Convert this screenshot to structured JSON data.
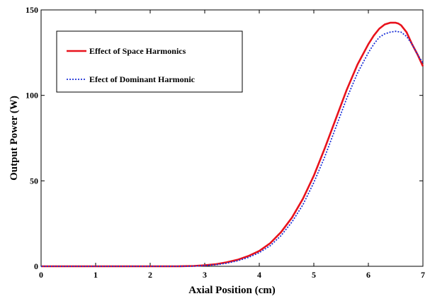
{
  "chart_data": {
    "type": "line",
    "title": "",
    "xlabel": "Axial Position (cm)",
    "ylabel": "Output Power (W)",
    "xlim": [
      0,
      7
    ],
    "ylim": [
      0,
      150
    ],
    "xticks": [
      0,
      1,
      2,
      3,
      4,
      5,
      6,
      7
    ],
    "yticks": [
      0,
      50,
      100,
      150
    ],
    "grid": false,
    "legend_position": "top-left",
    "series": [
      {
        "name": "Effect of Space Harmonics",
        "color": "#e8121c",
        "style": "solid",
        "x": [
          0,
          1,
          2,
          2.5,
          2.8,
          3.0,
          3.2,
          3.4,
          3.6,
          3.8,
          4.0,
          4.2,
          4.4,
          4.6,
          4.8,
          5.0,
          5.2,
          5.4,
          5.6,
          5.8,
          6.0,
          6.1,
          6.2,
          6.3,
          6.4,
          6.5,
          6.55,
          6.6,
          6.7,
          6.8,
          6.9,
          7.0
        ],
        "y": [
          0,
          0,
          0,
          0,
          0.2,
          0.6,
          1.2,
          2.3,
          3.8,
          6.0,
          9.0,
          13.5,
          20,
          28.5,
          39.5,
          53,
          69,
          86,
          103,
          118,
          130,
          135,
          139,
          141.5,
          142.5,
          142.5,
          142,
          141,
          137,
          130,
          124,
          117
        ]
      },
      {
        "name": "Efect of Dominant Harmonic",
        "color": "#1a2fd6",
        "style": "dotted",
        "x": [
          0,
          1,
          2,
          2.5,
          2.8,
          3.0,
          3.2,
          3.4,
          3.6,
          3.8,
          4.0,
          4.2,
          4.4,
          4.6,
          4.8,
          5.0,
          5.2,
          5.4,
          5.6,
          5.8,
          6.0,
          6.1,
          6.2,
          6.3,
          6.4,
          6.5,
          6.6,
          6.7,
          6.8,
          6.9,
          7.0
        ],
        "y": [
          0,
          0,
          0,
          0,
          0.1,
          0.4,
          0.9,
          1.8,
          3.2,
          5.2,
          8.0,
          12.0,
          18,
          26,
          36,
          49,
          64,
          81,
          98,
          113,
          125,
          130,
          134,
          136,
          137,
          137.5,
          137,
          134.5,
          130,
          124,
          119
        ]
      }
    ]
  }
}
